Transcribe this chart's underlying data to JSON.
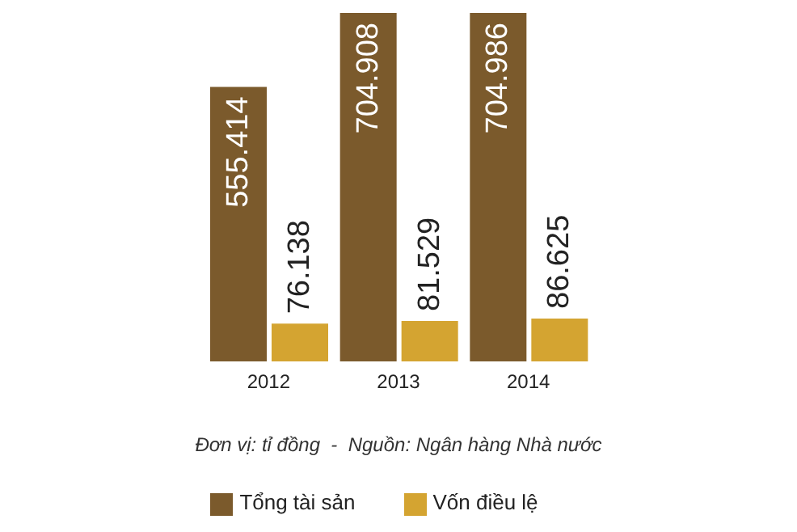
{
  "chart_data": {
    "type": "bar",
    "categories": [
      "2012",
      "2013",
      "2014"
    ],
    "series": [
      {
        "name": "Tổng tài sản",
        "color": "#7b5a2c",
        "values": [
          555414,
          704908,
          704986
        ],
        "value_labels": [
          "555.414",
          "704.908",
          "704.986"
        ]
      },
      {
        "name": "Vốn điều lệ",
        "color": "#d4a431",
        "values": [
          76138,
          81529,
          86625
        ],
        "value_labels": [
          "76.138",
          "81.529",
          "86.625"
        ]
      }
    ],
    "annotations": [
      "Đơn vị: tỉ đồng  -  Nguồn: Ngân hàng Nhà nước"
    ],
    "legend": "bottom",
    "grid": false
  }
}
